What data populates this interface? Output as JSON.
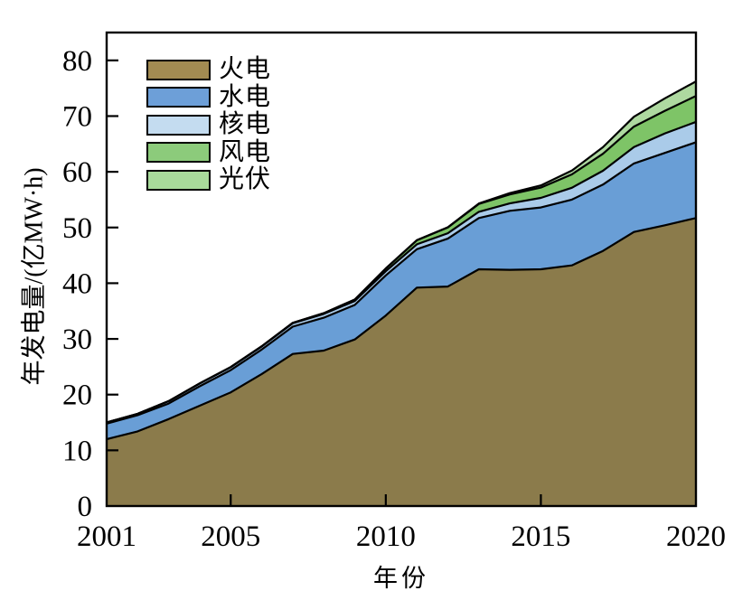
{
  "chart_data": {
    "type": "area",
    "stacked": true,
    "title": "",
    "xlabel": "年份",
    "ylabel": "年发电量/(亿MW·h)",
    "x": [
      2001,
      2002,
      2003,
      2004,
      2005,
      2006,
      2007,
      2008,
      2009,
      2010,
      2011,
      2012,
      2013,
      2014,
      2015,
      2016,
      2017,
      2018,
      2019,
      2020
    ],
    "xticks": [
      2001,
      2005,
      2010,
      2015,
      2020
    ],
    "yticks": [
      0,
      10,
      20,
      30,
      40,
      50,
      60,
      70,
      80
    ],
    "xlim": [
      2001,
      2020
    ],
    "ylim": [
      0,
      85
    ],
    "grid": false,
    "legend_position": "upper-left",
    "background": "#ffffff",
    "frame_color": "#000000",
    "boundary_line_color": "#000000",
    "series": [
      {
        "key": "thermal",
        "name": "火电",
        "color": "#8B7B4B",
        "legend_color": "#A28B52",
        "values": [
          12.0,
          13.4,
          15.6,
          18.0,
          20.4,
          23.7,
          27.3,
          27.9,
          29.9,
          34.2,
          39.2,
          39.4,
          42.5,
          42.4,
          42.5,
          43.2,
          45.8,
          49.2,
          50.4,
          51.7
        ]
      },
      {
        "key": "hydro",
        "name": "水电",
        "color": "#699ED6",
        "legend_color": "#6D9FD8",
        "values": [
          2.8,
          2.9,
          2.8,
          3.5,
          4.0,
          4.4,
          4.9,
          5.9,
          6.2,
          7.2,
          6.9,
          8.6,
          9.2,
          10.6,
          11.1,
          11.8,
          11.9,
          12.3,
          13.0,
          13.6
        ]
      },
      {
        "key": "nuclear",
        "name": "核电",
        "color": "#AACBE9",
        "legend_color": "#C4DCF0",
        "values": [
          0.2,
          0.25,
          0.43,
          0.5,
          0.53,
          0.55,
          0.62,
          0.68,
          0.7,
          0.74,
          0.87,
          0.98,
          1.11,
          1.33,
          1.71,
          2.13,
          2.48,
          2.95,
          3.49,
          3.66
        ]
      },
      {
        "key": "wind",
        "name": "风电",
        "color": "#7EC467",
        "legend_color": "#8CCB7B",
        "values": [
          0.01,
          0.01,
          0.01,
          0.01,
          0.02,
          0.03,
          0.06,
          0.13,
          0.27,
          0.49,
          0.74,
          1.03,
          1.41,
          1.6,
          1.86,
          2.41,
          3.05,
          3.66,
          4.06,
          4.66
        ]
      },
      {
        "key": "solar",
        "name": "光伏",
        "color": "#AED9A0",
        "legend_color": "#A8DB9B",
        "values": [
          0,
          0,
          0,
          0,
          0,
          0,
          0,
          0,
          0,
          0.01,
          0.01,
          0.04,
          0.09,
          0.24,
          0.39,
          0.67,
          1.18,
          1.77,
          2.24,
          2.61
        ]
      }
    ]
  }
}
